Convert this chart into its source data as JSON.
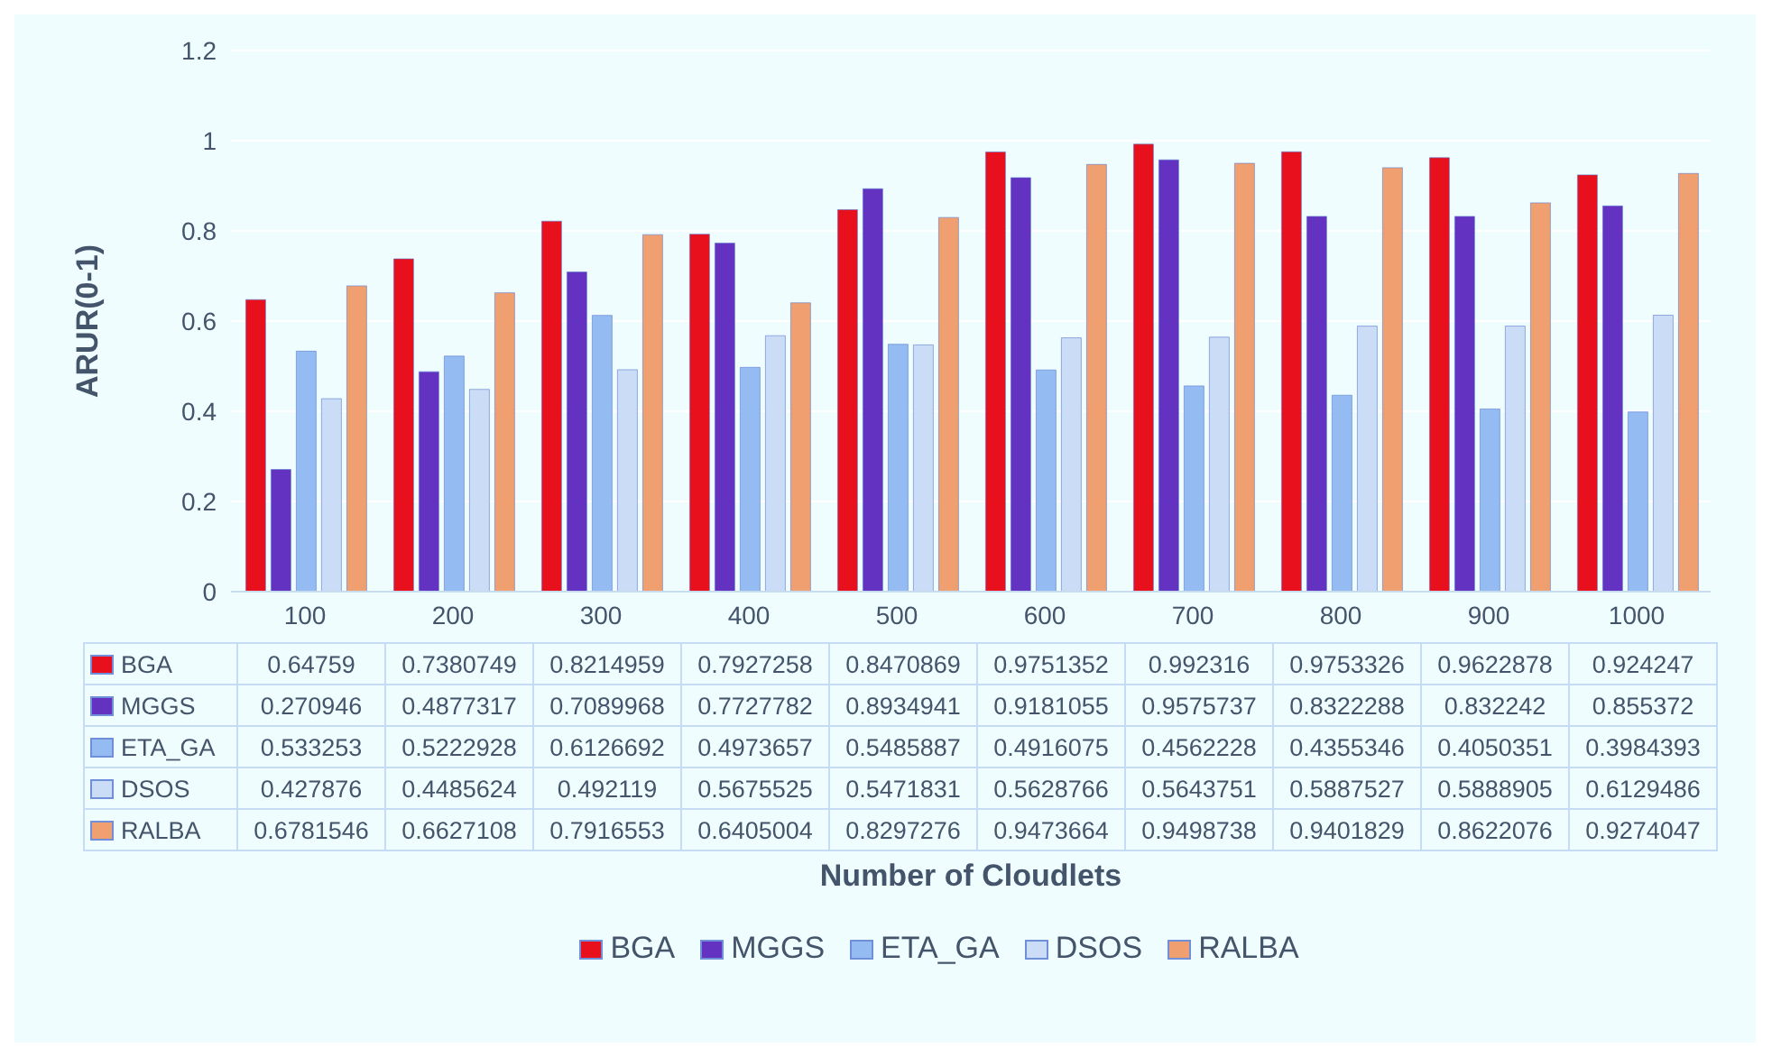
{
  "chart_data": {
    "type": "bar",
    "annotations": [
      "Number of Cloudlets"
    ],
    "ylabel": "ARUR(0-1)",
    "categories": [
      "100",
      "200",
      "300",
      "400",
      "500",
      "600",
      "700",
      "800",
      "900",
      "1000"
    ],
    "series": [
      {
        "name": "BGA",
        "color": "#e8101c",
        "values": [
          0.64759,
          0.7380749,
          0.8214959,
          0.7927258,
          0.8470869,
          0.9751352,
          0.992316,
          0.9753326,
          0.9622878,
          0.924247
        ]
      },
      {
        "name": "MGGS",
        "color": "#6432c0",
        "values": [
          0.270946,
          0.4877317,
          0.7089968,
          0.7727782,
          0.8934941,
          0.9181055,
          0.9575737,
          0.8322288,
          0.832242,
          0.855372
        ]
      },
      {
        "name": "ETA_GA",
        "color": "#94bcf2",
        "values": [
          0.533253,
          0.5222928,
          0.6126692,
          0.4973657,
          0.5485887,
          0.4916075,
          0.4562228,
          0.4355346,
          0.4050351,
          0.3984393
        ]
      },
      {
        "name": "DSOS",
        "color": "#cadcf6",
        "values": [
          0.427876,
          0.4485624,
          0.492119,
          0.5675525,
          0.5471831,
          0.5628766,
          0.5643751,
          0.5887527,
          0.5888905,
          0.6129486
        ]
      },
      {
        "name": "RALBA",
        "color": "#f0a070",
        "values": [
          0.6781546,
          0.6627108,
          0.7916553,
          0.6405004,
          0.8297276,
          0.9473664,
          0.9498738,
          0.9401829,
          0.8622076,
          0.9274047
        ]
      }
    ],
    "ylim": [
      0,
      1.2
    ],
    "yticks": [
      0,
      0.2,
      0.4,
      0.6,
      0.8,
      1,
      1.2
    ],
    "grid": "y",
    "legend": "bottom",
    "data_labels": true
  }
}
